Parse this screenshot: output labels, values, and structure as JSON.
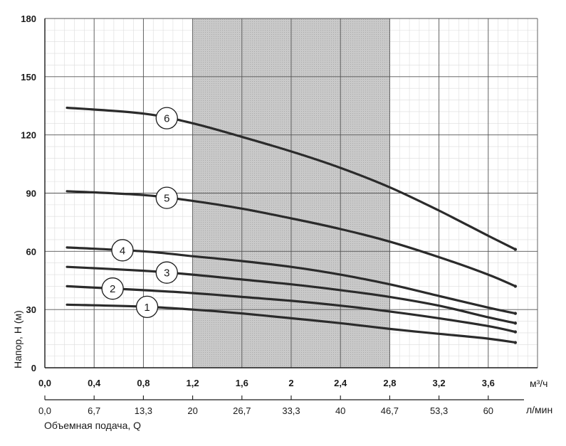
{
  "chart_data": {
    "type": "line",
    "ylabel": "Напор, H (м)",
    "xlabel": "Объемная подача, Q",
    "x_unit_top": "м³/ч",
    "x_unit_bottom": "л/мин",
    "xlim": [
      0,
      4
    ],
    "ylim": [
      0,
      180
    ],
    "y_ticks": [
      "0",
      "30",
      "60",
      "90",
      "120",
      "150",
      "180"
    ],
    "x_ticks_m3h": [
      "0,0",
      "0,4",
      "0,8",
      "1,2",
      "1,6",
      "2",
      "2,4",
      "2,8",
      "3,2",
      "3,6"
    ],
    "x_ticks_lmin": [
      "0,0",
      "6,7",
      "13,3",
      "20",
      "26,7",
      "33,3",
      "40",
      "46,7",
      "53,3",
      "60"
    ],
    "grid": true,
    "recommended_range": [
      1.2,
      2.8
    ],
    "series": [
      {
        "name": "1",
        "x": [
          0.18,
          0.8,
          1.2,
          1.6,
          2.0,
          2.4,
          2.8,
          3.2,
          3.6,
          3.82
        ],
        "y": [
          32.5,
          31.5,
          30,
          28,
          25.5,
          23,
          20,
          17.5,
          15,
          13
        ]
      },
      {
        "name": "2",
        "x": [
          0.18,
          0.8,
          1.2,
          1.6,
          2.0,
          2.4,
          2.8,
          3.2,
          3.6,
          3.82
        ],
        "y": [
          42,
          40,
          38.5,
          36.5,
          34.5,
          32,
          29,
          25.5,
          21.5,
          18.5
        ]
      },
      {
        "name": "3",
        "x": [
          0.18,
          0.8,
          1.2,
          1.6,
          2.0,
          2.4,
          2.8,
          3.2,
          3.6,
          3.82
        ],
        "y": [
          52,
          50,
          48,
          45.5,
          43,
          40,
          36.5,
          32,
          26,
          23
        ]
      },
      {
        "name": "4",
        "x": [
          0.18,
          0.8,
          1.2,
          1.6,
          2.0,
          2.4,
          2.8,
          3.2,
          3.6,
          3.82
        ],
        "y": [
          62,
          60,
          57.5,
          55,
          52,
          48,
          43,
          37,
          31,
          28
        ]
      },
      {
        "name": "5",
        "x": [
          0.18,
          0.8,
          1.2,
          1.6,
          2.0,
          2.4,
          2.8,
          3.2,
          3.6,
          3.82
        ],
        "y": [
          91,
          89,
          86,
          82,
          77,
          71.5,
          65,
          57,
          48,
          42
        ]
      },
      {
        "name": "6",
        "x": [
          0.18,
          0.8,
          1.2,
          1.6,
          2.0,
          2.4,
          2.8,
          3.2,
          3.6,
          3.82
        ],
        "y": [
          134,
          131,
          126,
          119,
          111.5,
          103,
          93,
          81,
          68,
          61
        ]
      }
    ],
    "label_positions_x": [
      0.83,
      0.55,
      0.99,
      0.63,
      0.99,
      0.99
    ]
  }
}
